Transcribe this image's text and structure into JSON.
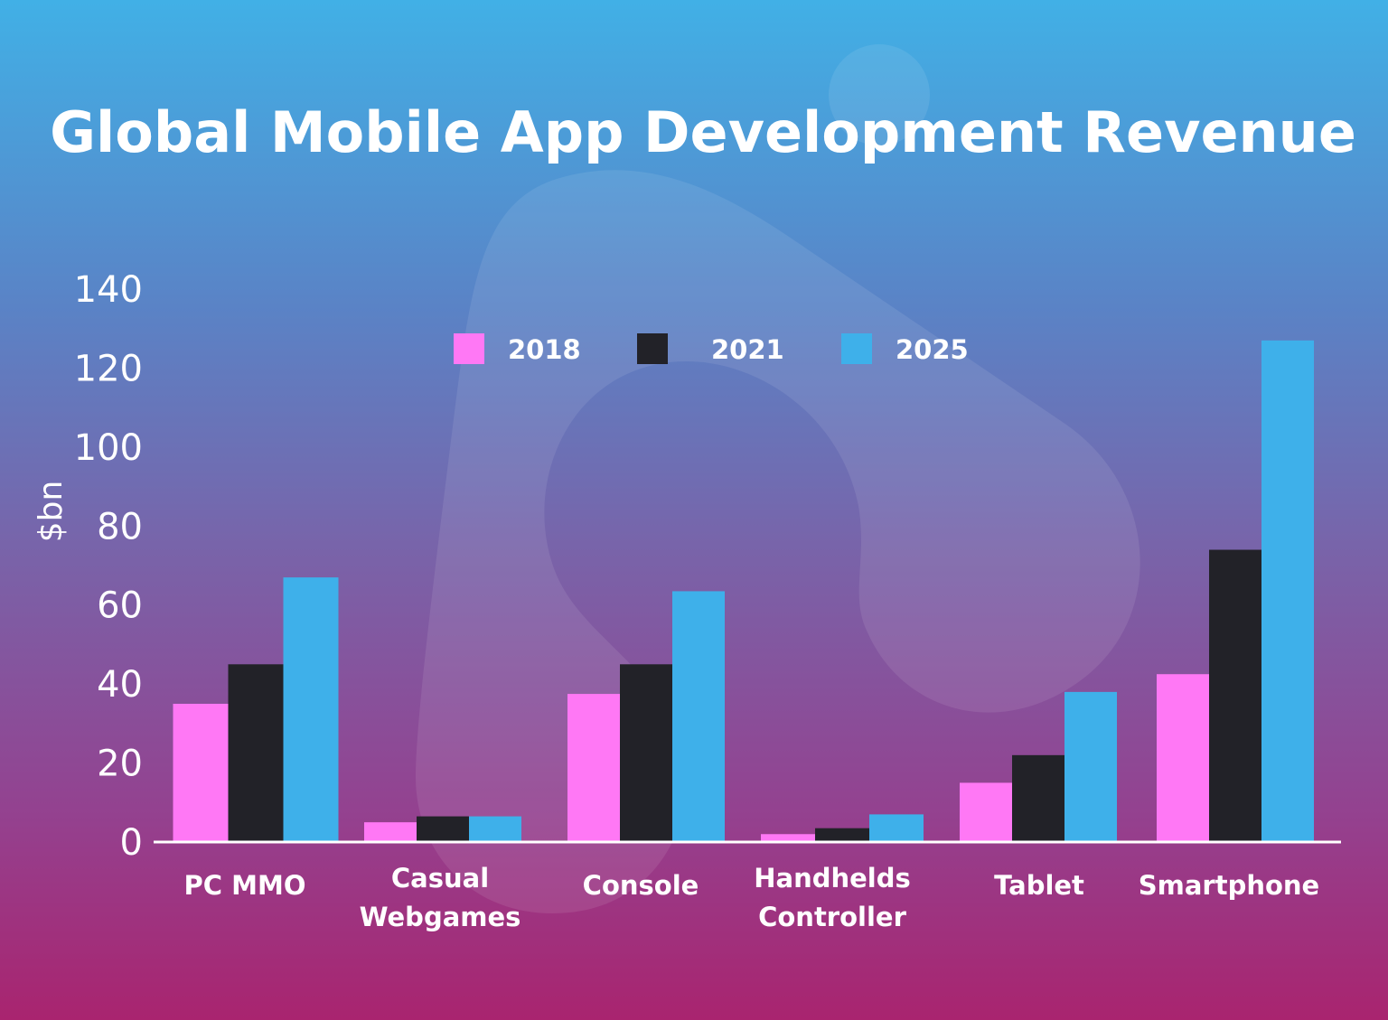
{
  "chart_data": {
    "type": "bar",
    "title": "Global Mobile App Development Revenue",
    "xlabel": "",
    "ylabel": "$bn",
    "ylim": [
      0,
      140
    ],
    "yticks": [
      0,
      20,
      40,
      60,
      80,
      100,
      120,
      140
    ],
    "grid": false,
    "legend_position": "top-center",
    "categories": [
      [
        "PC MMO"
      ],
      [
        "Casual",
        "Webgames"
      ],
      [
        "Console"
      ],
      [
        "Handhelds",
        "Controller"
      ],
      [
        "Tablet"
      ],
      [
        "Smartphone"
      ]
    ],
    "series": [
      {
        "name": "2018",
        "color": "#ff78f5",
        "values": [
          35,
          5,
          37.5,
          2,
          15,
          42.5
        ]
      },
      {
        "name": "2021",
        "color": "#222228",
        "values": [
          45,
          6.5,
          45,
          3.5,
          22,
          74
        ]
      },
      {
        "name": "2025",
        "color": "#3eb0ea",
        "values": [
          67,
          6.5,
          63.5,
          7,
          38,
          127
        ]
      }
    ]
  }
}
